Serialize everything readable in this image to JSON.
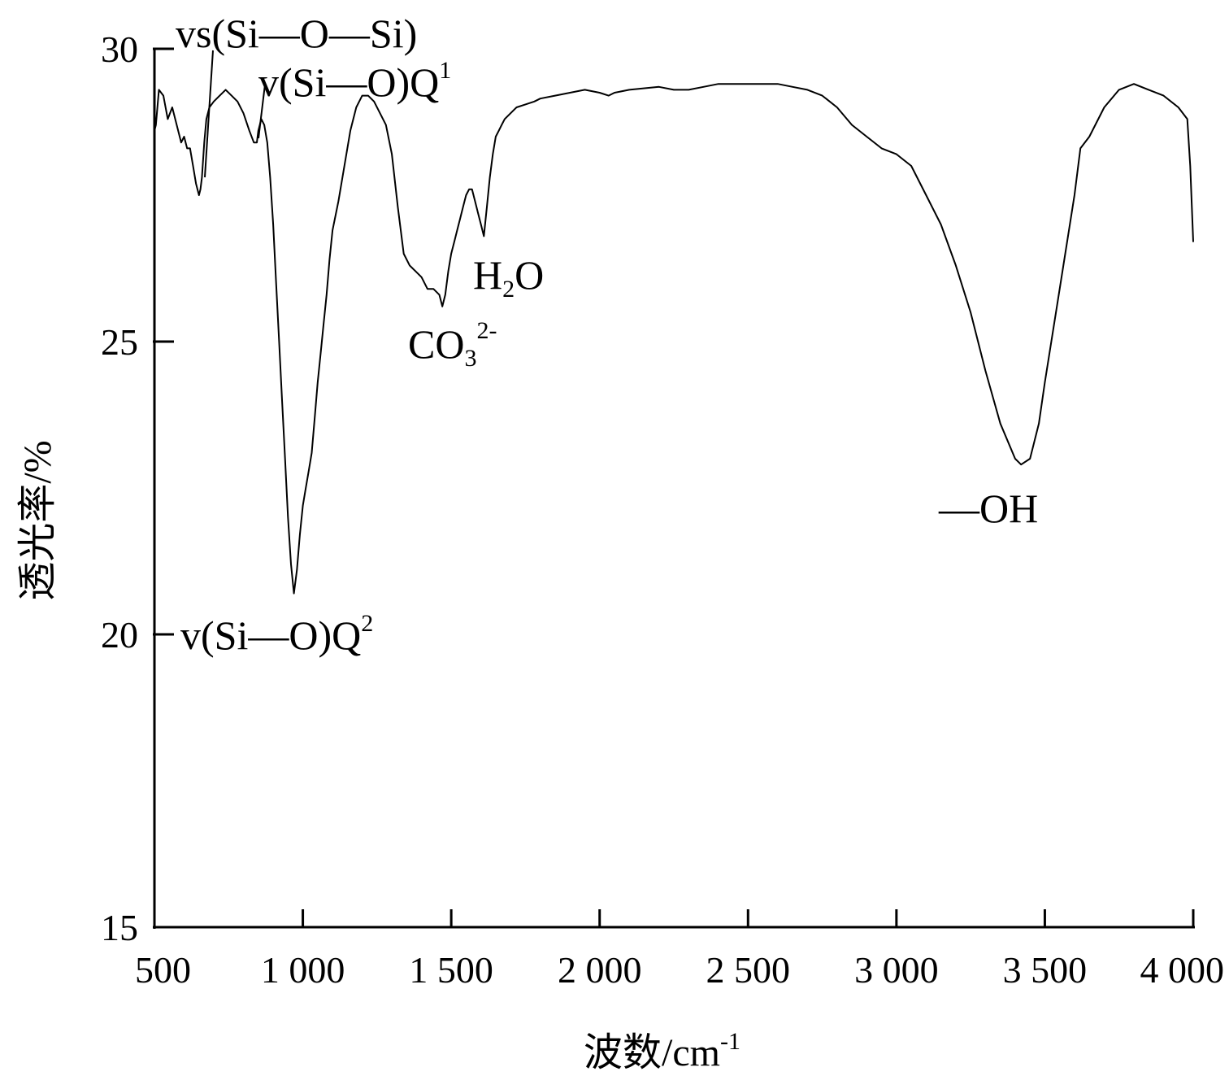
{
  "chart_data": {
    "type": "line",
    "xlabel": "波数/cm",
    "xlabel_sup": "-1",
    "ylabel": "透光率/%",
    "xlim": [
      500,
      4000
    ],
    "ylim": [
      15,
      30
    ],
    "xticks": [
      500,
      1000,
      1500,
      2000,
      2500,
      3000,
      3500,
      4000
    ],
    "xtick_labels": [
      "500",
      "1 000",
      "1 500",
      "2 000",
      "2 500",
      "3 000",
      "3 500",
      "4 000"
    ],
    "yticks": [
      15,
      20,
      25,
      30
    ],
    "ytick_labels": [
      "15",
      "20",
      "25",
      "30"
    ],
    "grid": false,
    "series": [
      {
        "color": "#000000",
        "x": [
          500,
          505,
          515,
          530,
          545,
          560,
          575,
          590,
          600,
          610,
          620,
          630,
          640,
          650,
          655,
          660,
          668,
          675,
          685,
          700,
          720,
          740,
          760,
          780,
          800,
          820,
          835,
          845,
          850,
          855,
          860,
          870,
          880,
          890,
          900,
          910,
          920,
          930,
          940,
          950,
          960,
          970,
          980,
          990,
          1000,
          1010,
          1020,
          1030,
          1040,
          1050,
          1060,
          1070,
          1080,
          1090,
          1100,
          1120,
          1140,
          1160,
          1180,
          1200,
          1220,
          1240,
          1260,
          1280,
          1300,
          1320,
          1340,
          1360,
          1380,
          1400,
          1420,
          1440,
          1460,
          1470,
          1480,
          1490,
          1500,
          1510,
          1520,
          1530,
          1540,
          1550,
          1560,
          1570,
          1580,
          1590,
          1600,
          1610,
          1620,
          1630,
          1640,
          1650,
          1660,
          1670,
          1680,
          1700,
          1720,
          1750,
          1780,
          1800,
          1850,
          1900,
          1950,
          2000,
          2030,
          2050,
          2100,
          2200,
          2250,
          2300,
          2350,
          2400,
          2500,
          2600,
          2650,
          2700,
          2750,
          2800,
          2850,
          2900,
          2950,
          3000,
          3050,
          3100,
          3150,
          3200,
          3250,
          3300,
          3350,
          3400,
          3420,
          3450,
          3480,
          3500,
          3550,
          3600,
          3620,
          3650,
          3700,
          3750,
          3800,
          3850,
          3900,
          3950,
          3980,
          3990,
          4000
        ],
        "y": [
          28.6,
          28.7,
          29.3,
          29.2,
          28.8,
          29.0,
          28.7,
          28.4,
          28.5,
          28.3,
          28.3,
          28.0,
          27.7,
          27.5,
          27.6,
          27.8,
          28.4,
          28.8,
          29.0,
          29.1,
          29.2,
          29.3,
          29.2,
          29.1,
          28.9,
          28.6,
          28.4,
          28.4,
          28.6,
          28.7,
          28.8,
          28.7,
          28.4,
          27.8,
          27.0,
          26.0,
          25.0,
          24.0,
          23.0,
          22.0,
          21.2,
          20.7,
          21.1,
          21.7,
          22.2,
          22.5,
          22.8,
          23.1,
          23.7,
          24.3,
          24.8,
          25.3,
          25.8,
          26.4,
          26.9,
          27.4,
          28.0,
          28.6,
          29.0,
          29.2,
          29.2,
          29.1,
          28.9,
          28.7,
          28.2,
          27.3,
          26.5,
          26.3,
          26.2,
          26.1,
          25.9,
          25.9,
          25.8,
          25.6,
          25.8,
          26.2,
          26.5,
          26.7,
          26.9,
          27.1,
          27.3,
          27.5,
          27.6,
          27.6,
          27.4,
          27.2,
          27.0,
          26.8,
          27.3,
          27.8,
          28.2,
          28.5,
          28.6,
          28.7,
          28.8,
          28.9,
          29.0,
          29.05,
          29.1,
          29.15,
          29.2,
          29.25,
          29.3,
          29.25,
          29.2,
          29.25,
          29.3,
          29.35,
          29.3,
          29.3,
          29.35,
          29.4,
          29.4,
          29.4,
          29.35,
          29.3,
          29.2,
          29.0,
          28.7,
          28.5,
          28.3,
          28.2,
          28.0,
          27.5,
          27.0,
          26.3,
          25.5,
          24.5,
          23.6,
          23.0,
          22.9,
          23.0,
          23.6,
          24.3,
          25.9,
          27.5,
          28.3,
          28.5,
          29.0,
          29.3,
          29.4,
          29.3,
          29.2,
          29.0,
          28.8,
          28.0,
          26.7
        ]
      }
    ],
    "annotations": [
      {
        "text": "vs(Si—O—Si)"
      },
      {
        "text": "v(Si—O)Q",
        "sup": "1"
      },
      {
        "text": "v(Si—O)Q",
        "sup": "2"
      },
      {
        "text": "CO",
        "sub": "3",
        "sup": "2-"
      },
      {
        "text": "H",
        "sub": "2",
        "after": "O"
      },
      {
        "text": "—OH"
      }
    ]
  }
}
